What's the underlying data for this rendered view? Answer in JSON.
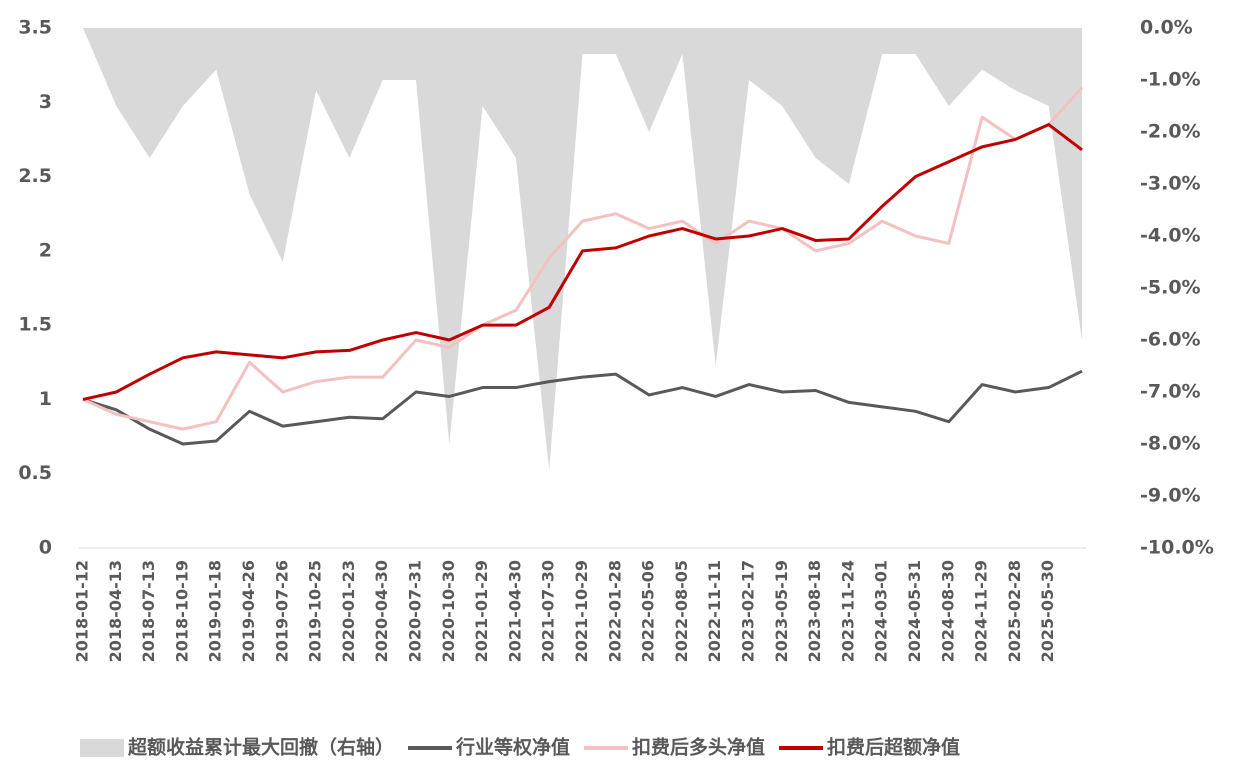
{
  "chart_data": {
    "type": "line",
    "categories": [
      "2018-01-12",
      "2018-04-13",
      "2018-07-13",
      "2018-10-19",
      "2019-01-18",
      "2019-04-26",
      "2019-07-26",
      "2019-10-25",
      "2020-01-23",
      "2020-04-30",
      "2020-07-31",
      "2020-10-30",
      "2021-01-29",
      "2021-04-30",
      "2021-07-30",
      "2021-10-29",
      "2022-01-28",
      "2022-05-06",
      "2022-08-05",
      "2022-11-11",
      "2023-02-17",
      "2023-05-19",
      "2023-08-18",
      "2023-11-24",
      "2024-03-01",
      "2024-05-31",
      "2024-08-30",
      "2024-11-29",
      "2025-02-28",
      "2025-05-30",
      null
    ],
    "series": [
      {
        "name": "超额收益累计最大回撤（右轴）",
        "type": "area",
        "axis": "y2",
        "color": "#d9d9d9",
        "values": [
          0,
          -1.5,
          -2.5,
          -1.5,
          -0.8,
          -3.2,
          -4.5,
          -1.2,
          -2.5,
          -1.0,
          -1.0,
          -8.0,
          -1.5,
          -2.5,
          -8.5,
          -0.5,
          -0.5,
          -2.0,
          -0.5,
          -6.5,
          -1.0,
          -1.5,
          -2.5,
          -3.0,
          -0.5,
          -0.5,
          -1.5,
          -0.8,
          -1.2,
          -1.5,
          -6.0
        ]
      },
      {
        "name": "行业等权净值",
        "type": "line",
        "color": "#595959",
        "values": [
          1.0,
          0.93,
          0.8,
          0.7,
          0.72,
          0.92,
          0.82,
          0.85,
          0.88,
          0.87,
          1.05,
          1.02,
          1.08,
          1.08,
          1.12,
          1.15,
          1.17,
          1.03,
          1.08,
          1.02,
          1.1,
          1.05,
          1.06,
          0.98,
          0.95,
          0.92,
          0.85,
          1.1,
          1.05,
          1.08,
          1.19
        ]
      },
      {
        "name": "扣费后多头净值",
        "type": "line",
        "color": "#f4c1c1",
        "values": [
          1.0,
          0.9,
          0.85,
          0.8,
          0.85,
          1.25,
          1.05,
          1.12,
          1.15,
          1.15,
          1.4,
          1.35,
          1.5,
          1.6,
          1.95,
          2.2,
          2.25,
          2.15,
          2.2,
          2.05,
          2.2,
          2.15,
          2.0,
          2.05,
          2.2,
          2.1,
          2.05,
          2.9,
          2.75,
          2.85,
          3.1
        ]
      },
      {
        "name": "扣费后超额净值",
        "type": "line",
        "color": "#c00000",
        "values": [
          1.0,
          1.05,
          1.17,
          1.28,
          1.32,
          1.3,
          1.28,
          1.32,
          1.33,
          1.4,
          1.45,
          1.4,
          1.5,
          1.5,
          1.62,
          2.0,
          2.02,
          2.1,
          2.15,
          2.08,
          2.1,
          2.15,
          2.07,
          2.08,
          2.3,
          2.5,
          2.6,
          2.7,
          2.75,
          2.85,
          2.68
        ]
      }
    ],
    "ylim": [
      0,
      3.5
    ],
    "yticks": [
      0,
      0.5,
      1,
      1.5,
      2,
      2.5,
      3,
      3.5
    ],
    "y2lim": [
      -10,
      0
    ],
    "y2ticks": [
      {
        "value": 0,
        "label": "0.0%"
      },
      {
        "value": -1,
        "label": "-1.0%"
      },
      {
        "value": -2,
        "label": "-2.0%"
      },
      {
        "value": -3,
        "label": "-3.0%"
      },
      {
        "value": -4,
        "label": "-4.0%"
      },
      {
        "value": -5,
        "label": "-5.0%"
      },
      {
        "value": -6,
        "label": "-6.0%"
      },
      {
        "value": -7,
        "label": "-7.0%"
      },
      {
        "value": -8,
        "label": "-8.0%"
      },
      {
        "value": -9,
        "label": "-9.0%"
      },
      {
        "value": -10,
        "label": "-10.0%"
      }
    ],
    "legend": "bottom"
  }
}
